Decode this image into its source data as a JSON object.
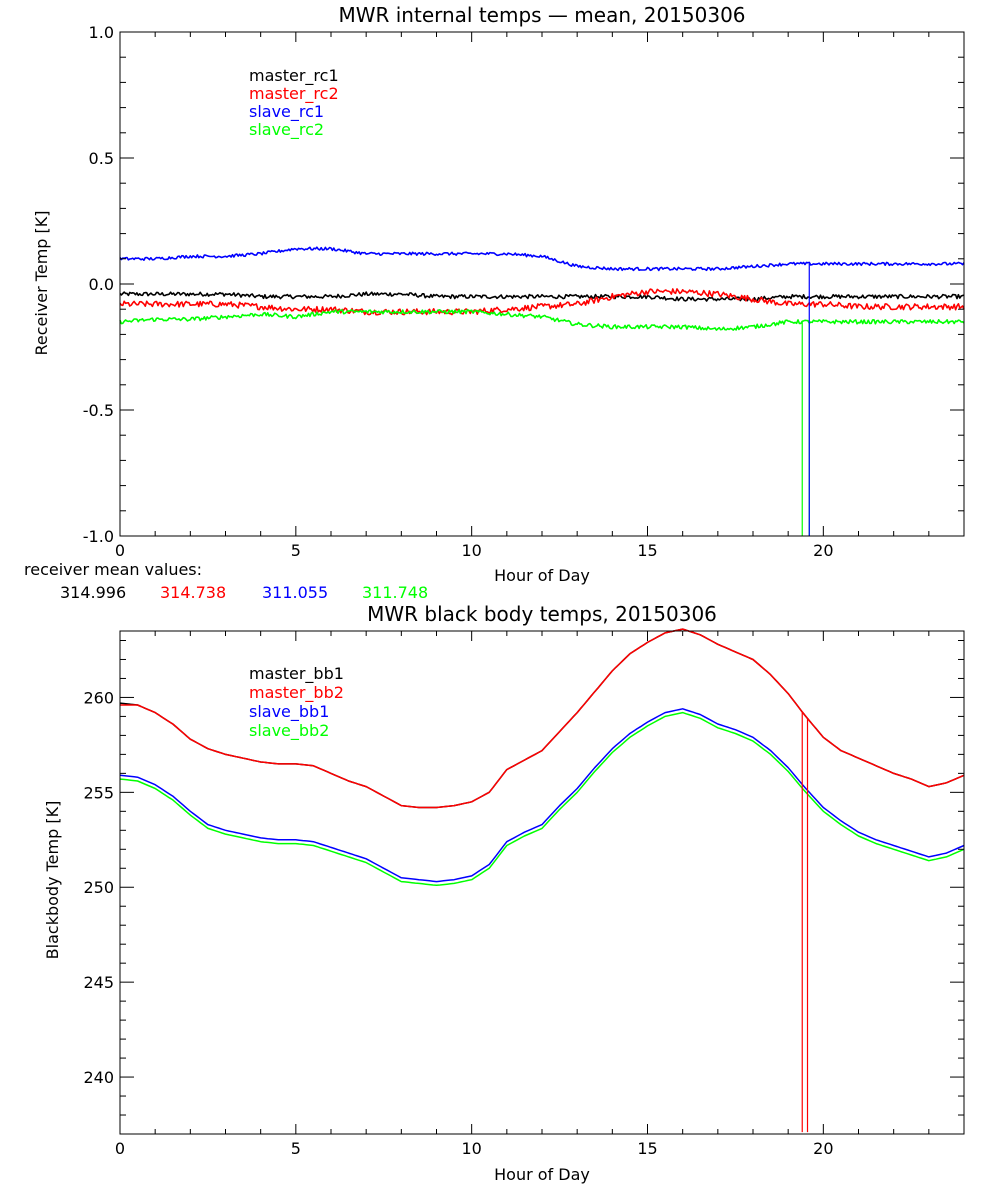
{
  "colors": {
    "black": "#000000",
    "red": "#ff0000",
    "blue": "#0000ff",
    "green": "#00ff00"
  },
  "chart_data": [
    {
      "type": "line",
      "title": "MWR internal temps — mean, 20150306",
      "xlabel": "Hour of Day",
      "ylabel": "Receiver Temp [K]",
      "xlim": [
        0,
        24
      ],
      "ylim": [
        -1.0,
        1.0
      ],
      "x_ticks": [
        0,
        5,
        10,
        15,
        20
      ],
      "y_ticks": [
        1.0,
        0.5,
        0.0,
        -0.5,
        -1.0
      ],
      "x_tick_labels": [
        "0",
        "5",
        "10",
        "15",
        "20"
      ],
      "y_tick_labels": [
        "1.0",
        "0.5",
        "0.0",
        "-0.5",
        "-1.0"
      ],
      "legend_position": "upper-left",
      "grid": false,
      "x": [
        0,
        1,
        2,
        3,
        4,
        5,
        6,
        7,
        8,
        9,
        10,
        11,
        12,
        13,
        14,
        15,
        16,
        17,
        18,
        19,
        20,
        21,
        22,
        23,
        24
      ],
      "series": [
        {
          "name": "master_rc1",
          "color": "#000000",
          "values": [
            -0.04,
            -0.04,
            -0.04,
            -0.04,
            -0.05,
            -0.05,
            -0.05,
            -0.04,
            -0.04,
            -0.05,
            -0.05,
            -0.05,
            -0.05,
            -0.05,
            -0.05,
            -0.05,
            -0.06,
            -0.06,
            -0.06,
            -0.05,
            -0.05,
            -0.05,
            -0.05,
            -0.05,
            -0.05
          ]
        },
        {
          "name": "master_rc2",
          "color": "#ff0000",
          "values": [
            -0.08,
            -0.08,
            -0.08,
            -0.08,
            -0.09,
            -0.1,
            -0.1,
            -0.11,
            -0.11,
            -0.11,
            -0.11,
            -0.1,
            -0.09,
            -0.08,
            -0.05,
            -0.03,
            -0.03,
            -0.04,
            -0.06,
            -0.08,
            -0.08,
            -0.09,
            -0.09,
            -0.09,
            -0.09
          ]
        },
        {
          "name": "slave_rc1",
          "color": "#0000ff",
          "values": [
            0.1,
            0.1,
            0.11,
            0.11,
            0.12,
            0.14,
            0.14,
            0.12,
            0.12,
            0.12,
            0.12,
            0.12,
            0.11,
            0.07,
            0.06,
            0.06,
            0.06,
            0.06,
            0.07,
            0.08,
            0.08,
            0.08,
            0.08,
            0.08,
            0.08
          ]
        },
        {
          "name": "slave_rc2",
          "color": "#00ff00",
          "values": [
            -0.15,
            -0.14,
            -0.14,
            -0.13,
            -0.12,
            -0.13,
            -0.11,
            -0.11,
            -0.11,
            -0.11,
            -0.11,
            -0.12,
            -0.13,
            -0.16,
            -0.17,
            -0.17,
            -0.17,
            -0.18,
            -0.17,
            -0.15,
            -0.15,
            -0.15,
            -0.15,
            -0.15,
            -0.15
          ]
        }
      ],
      "spikes": [
        {
          "series": "slave_rc2",
          "x": 19.4,
          "to": -1.0
        },
        {
          "series": "slave_rc2",
          "x": 19.6,
          "to": -1.0
        },
        {
          "series": "slave_rc1",
          "x": 19.6,
          "to": -1.0
        }
      ]
    },
    {
      "type": "line",
      "title": "MWR black body temps, 20150306",
      "xlabel": "Hour of Day",
      "ylabel": "Blackbody Temp [K]",
      "xlim": [
        0,
        24
      ],
      "ylim": [
        237,
        263.5
      ],
      "x_ticks": [
        0,
        5,
        10,
        15,
        20
      ],
      "y_ticks": [
        260,
        255,
        250,
        245,
        240
      ],
      "x_tick_labels": [
        "0",
        "5",
        "10",
        "15",
        "20"
      ],
      "y_tick_labels": [
        "260",
        "255",
        "250",
        "245",
        "240"
      ],
      "legend_position": "upper-left",
      "grid": false,
      "x": [
        0,
        0.5,
        1,
        1.5,
        2,
        2.5,
        3,
        3.5,
        4,
        4.5,
        5,
        5.5,
        6,
        6.5,
        7,
        7.5,
        8,
        8.5,
        9,
        9.5,
        10,
        10.5,
        11,
        11.5,
        12,
        12.5,
        13,
        13.5,
        14,
        14.5,
        15,
        15.5,
        16,
        16.5,
        17,
        17.5,
        18,
        18.5,
        19,
        19.5,
        20,
        20.5,
        21,
        21.5,
        22,
        22.5,
        23,
        23.5,
        24
      ],
      "series": [
        {
          "name": "master_bb1",
          "color": "#000000",
          "values": [
            259.7,
            259.6,
            259.2,
            258.6,
            257.8,
            257.3,
            257.0,
            256.8,
            256.6,
            256.5,
            256.5,
            256.4,
            256.0,
            255.6,
            255.3,
            254.8,
            254.3,
            254.2,
            254.2,
            254.3,
            254.5,
            255.0,
            256.2,
            256.7,
            257.2,
            258.2,
            259.2,
            260.3,
            261.4,
            262.3,
            262.9,
            263.4,
            263.6,
            263.3,
            262.8,
            262.4,
            262.0,
            261.2,
            260.2,
            259.0,
            257.9,
            257.2,
            256.8,
            256.4,
            256.0,
            255.7,
            255.3,
            255.5,
            255.9
          ]
        },
        {
          "name": "master_bb2",
          "color": "#ff0000",
          "values": [
            259.6,
            259.6,
            259.2,
            258.6,
            257.8,
            257.3,
            257.0,
            256.8,
            256.6,
            256.5,
            256.5,
            256.4,
            256.0,
            255.6,
            255.3,
            254.8,
            254.3,
            254.2,
            254.2,
            254.3,
            254.5,
            255.0,
            256.2,
            256.7,
            257.2,
            258.2,
            259.2,
            260.3,
            261.4,
            262.3,
            262.9,
            263.4,
            263.6,
            263.3,
            262.8,
            262.4,
            262.0,
            261.2,
            260.2,
            259.0,
            257.9,
            257.2,
            256.8,
            256.4,
            256.0,
            255.7,
            255.3,
            255.5,
            255.9
          ]
        },
        {
          "name": "slave_bb1",
          "color": "#0000ff",
          "values": [
            255.9,
            255.8,
            255.4,
            254.8,
            254.0,
            253.3,
            253.0,
            252.8,
            252.6,
            252.5,
            252.5,
            252.4,
            252.1,
            251.8,
            251.5,
            251.0,
            250.5,
            250.4,
            250.3,
            250.4,
            250.6,
            251.2,
            252.4,
            252.9,
            253.3,
            254.3,
            255.2,
            256.3,
            257.3,
            258.1,
            258.7,
            259.2,
            259.4,
            259.1,
            258.6,
            258.3,
            257.9,
            257.2,
            256.3,
            255.2,
            254.2,
            253.5,
            252.9,
            252.5,
            252.2,
            251.9,
            251.6,
            251.8,
            252.2
          ]
        },
        {
          "name": "slave_bb2",
          "color": "#00ff00",
          "values": [
            255.7,
            255.6,
            255.2,
            254.6,
            253.8,
            253.1,
            252.8,
            252.6,
            252.4,
            252.3,
            252.3,
            252.2,
            251.9,
            251.6,
            251.3,
            250.8,
            250.3,
            250.2,
            250.1,
            250.2,
            250.4,
            251.0,
            252.2,
            252.7,
            253.1,
            254.1,
            255.0,
            256.1,
            257.1,
            257.9,
            258.5,
            259.0,
            259.2,
            258.9,
            258.4,
            258.1,
            257.7,
            257.0,
            256.1,
            255.0,
            254.0,
            253.3,
            252.7,
            252.3,
            252.0,
            251.7,
            251.4,
            251.6,
            252.0
          ]
        }
      ],
      "spikes": [
        {
          "series": "master_bb2",
          "x": 19.4,
          "to": 237.1
        },
        {
          "series": "master_bb2",
          "x": 19.55,
          "to": 237.1
        }
      ]
    }
  ],
  "receiver_mean": {
    "label": "receiver mean values:",
    "values": [
      {
        "text": "314.996",
        "color": "#000000"
      },
      {
        "text": "314.738",
        "color": "#ff0000"
      },
      {
        "text": "311.055",
        "color": "#0000ff"
      },
      {
        "text": "311.748",
        "color": "#00ff00"
      }
    ]
  }
}
